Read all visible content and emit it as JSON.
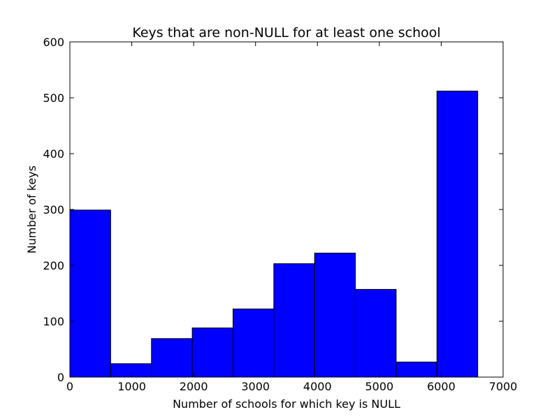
{
  "chart_data": {
    "type": "bar",
    "title": "Keys that are non-NULL for at least one school",
    "xlabel": "Number of schools for which key is NULL",
    "ylabel": "Number of keys",
    "xlim": [
      0,
      7000
    ],
    "ylim": [
      0,
      600
    ],
    "xticks": [
      0,
      1000,
      2000,
      3000,
      4000,
      5000,
      6000,
      7000
    ],
    "yticks": [
      0,
      100,
      200,
      300,
      400,
      500,
      600
    ],
    "bin_edges": [
      0,
      659,
      1318,
      1977,
      2636,
      3295,
      3954,
      4613,
      5272,
      5931,
      6590
    ],
    "values": [
      299,
      24,
      69,
      88,
      122,
      203,
      222,
      157,
      27,
      512
    ],
    "grid": false,
    "bar_color": "#0000ff",
    "edge_color": "#000000"
  }
}
